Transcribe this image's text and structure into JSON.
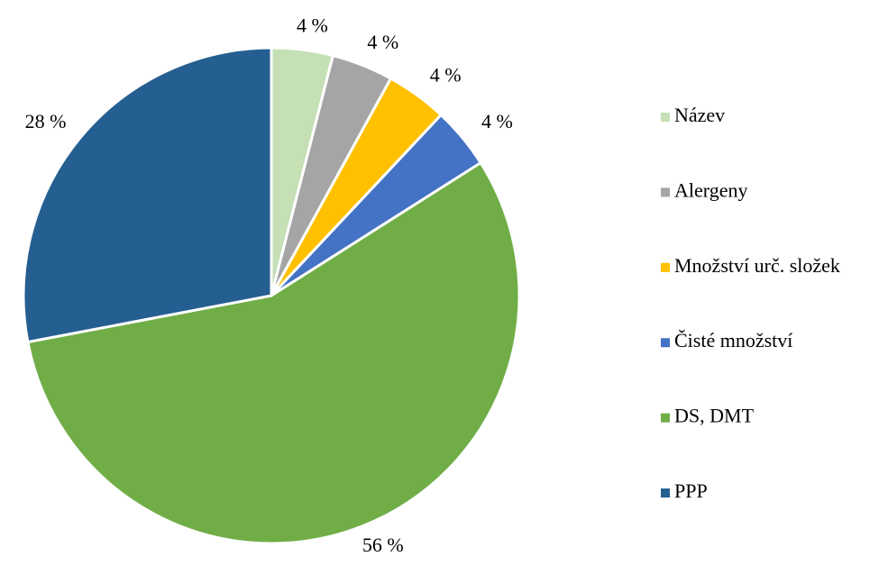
{
  "chart_data": {
    "type": "pie",
    "categories": [
      "Název",
      "Alergeny",
      "Množství urč. složek",
      "Čisté množství",
      "DS, DMT",
      "PPP"
    ],
    "values": [
      4,
      4,
      4,
      4,
      56,
      28
    ],
    "value_labels": [
      "4 %",
      "4 %",
      "4 %",
      "4 %",
      "56 %",
      "28 %"
    ],
    "colors": [
      "#c5e0b4",
      "#a5a5a5",
      "#ffc000",
      "#4472c4",
      "#70ad47",
      "#255e91"
    ],
    "legend": "right"
  }
}
